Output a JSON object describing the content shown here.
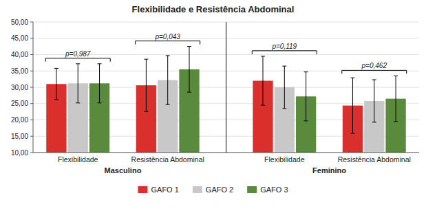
{
  "chart_data": {
    "type": "bar",
    "title": "Flexibilidade e Resistência Abdominal",
    "categories": [
      "Flexibilidade",
      "Resistência Abdominal",
      "Flexibilidade",
      "Resistência Abdominal"
    ],
    "category_groups": [
      "Masculino",
      "Feminino"
    ],
    "series": [
      {
        "name": "GAFO 1",
        "color": "#d9302e",
        "values": [
          31.0,
          30.6,
          32.0,
          24.4
        ],
        "errors": [
          4.8,
          8.0,
          7.5,
          8.5
        ]
      },
      {
        "name": "GAFO 2",
        "color": "#c8c8c8",
        "values": [
          31.2,
          32.2,
          30.0,
          25.8
        ],
        "errors": [
          6.0,
          7.5,
          6.5,
          6.5
        ]
      },
      {
        "name": "GAFO 3",
        "color": "#5a8a3c",
        "values": [
          31.2,
          35.5,
          27.2,
          26.5
        ],
        "errors": [
          6.0,
          7.0,
          7.5,
          7.0
        ]
      }
    ],
    "annotations": [
      "p=0,987",
      "p=0,043",
      "p=0,119",
      "p=0,462"
    ],
    "ylim": [
      10.0,
      50.0
    ],
    "yticks": [
      {
        "value": 10.0,
        "label": "10,00"
      },
      {
        "value": 15.0,
        "label": "15,00"
      },
      {
        "value": 20.0,
        "label": "20,00"
      },
      {
        "value": 25.0,
        "label": "25,00"
      },
      {
        "value": 30.0,
        "label": "30,00"
      },
      {
        "value": 35.0,
        "label": "35,00"
      },
      {
        "value": 40.0,
        "label": "40,00"
      },
      {
        "value": 45.0,
        "label": "45,00"
      },
      {
        "value": 50.0,
        "label": "50,00"
      }
    ],
    "grid": true,
    "legend": "bottom"
  }
}
